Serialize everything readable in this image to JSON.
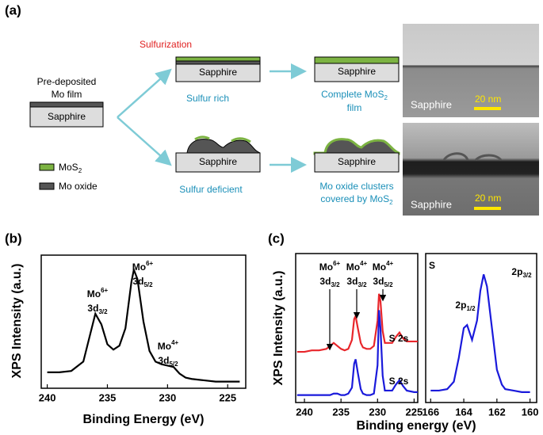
{
  "panel_labels": [
    "(a)",
    "(b)",
    "(c)"
  ],
  "diagram": {
    "process": "Sulfurization",
    "start_label": [
      "Pre-deposited",
      "Mo film"
    ],
    "substrates": [
      "Sapphire",
      "Sapphire",
      "Sapphire",
      "Sapphire",
      "Sapphire"
    ],
    "conditions": [
      "Sulfur rich",
      "Sulfur deficient"
    ],
    "results": [
      {
        "main": "Complete MoS",
        "sub": "2",
        "line2": "film"
      },
      {
        "line1": "Mo oxide clusters",
        "main": "covered by MoS",
        "sub": "2"
      }
    ],
    "legend": [
      {
        "main": "MoS",
        "sub": "2"
      },
      {
        "main": "Mo oxide"
      }
    ],
    "tem": [
      {
        "label": "Sapphire",
        "scale": "20 nm"
      },
      {
        "label": "Sapphire",
        "scale": "20 nm"
      }
    ]
  },
  "chart_data": [
    {
      "type": "line",
      "x_label": "Binding Energy (eV)",
      "y_label": "XPS Intensity (a.u.)",
      "x": [
        240,
        239,
        238,
        237,
        236.5,
        236,
        235.5,
        235,
        234.5,
        234,
        233.5,
        233,
        232.8,
        232.5,
        232,
        231.5,
        231,
        230.5,
        230,
        229.5,
        229,
        228.5,
        228,
        227,
        226,
        225,
        224
      ],
      "series": [
        {
          "color": "#000000",
          "values": [
            12,
            12,
            13,
            20,
            38,
            56,
            48,
            33,
            29,
            32,
            45,
            80,
            89,
            82,
            50,
            28,
            20,
            18,
            17,
            16,
            11,
            8,
            7,
            6,
            5,
            5,
            5
          ]
        }
      ],
      "xlim": [
        240.5,
        223.5
      ],
      "ylim": [
        0,
        100
      ],
      "xticks": [
        240,
        235,
        230,
        225
      ],
      "annotations": [
        {
          "ion": "Mo",
          "charge": "6+",
          "orbital": "3d",
          "level": "3/2"
        },
        {
          "ion": "Mo",
          "charge": "6+",
          "orbital": "3d",
          "level": "5/2"
        },
        {
          "ion": "Mo",
          "charge": "4+",
          "orbital": "3d",
          "level": "5/2"
        }
      ]
    },
    {
      "type": "line",
      "x_label": "Binding energy (eV)",
      "y_label": "XPS Intensity (a.u.)",
      "x": [
        241,
        240,
        239,
        238,
        237,
        236.5,
        236,
        235.5,
        235,
        234.5,
        234,
        233.5,
        233.2,
        233,
        232.7,
        232.3,
        232,
        231.5,
        231,
        230.5,
        230,
        229.8,
        229.6,
        229.3,
        229,
        228.5,
        228,
        227.5,
        227,
        226.5,
        226,
        225,
        224.5
      ],
      "series": [
        {
          "color": "#e8262b",
          "values": [
            34,
            34,
            35,
            35,
            36,
            38,
            40,
            38,
            36,
            35,
            36,
            42,
            56,
            58,
            50,
            40,
            37,
            36,
            36,
            38,
            55,
            73,
            68,
            48,
            40,
            40,
            40,
            44,
            47,
            43,
            41,
            41,
            41
          ]
        },
        {
          "color": "#1a1adb",
          "values": [
            5,
            5,
            5,
            5,
            5,
            5,
            6,
            6,
            5,
            5,
            6,
            10,
            26,
            29,
            20,
            9,
            6,
            5,
            5,
            6,
            25,
            62,
            50,
            18,
            8,
            8,
            8,
            12,
            15,
            11,
            8,
            7,
            7
          ]
        }
      ],
      "xlim": [
        241.2,
        224.5
      ],
      "ylim": [
        0,
        100
      ],
      "xticks": [
        240,
        235,
        230,
        225
      ],
      "annotations": [
        {
          "ion": "Mo",
          "charge": "6+",
          "orbital": "3d",
          "level": "3/2"
        },
        {
          "ion": "Mo",
          "charge": "4+",
          "orbital": "3d",
          "level": "3/2"
        },
        {
          "ion": "Mo",
          "charge": "4+",
          "orbital": "3d",
          "level": "5/2"
        },
        {
          "text": "S 2s"
        },
        {
          "text": "S 2s"
        }
      ]
    },
    {
      "type": "line",
      "x": [
        166,
        165.5,
        165,
        164.6,
        164.3,
        164,
        163.8,
        163.5,
        163.2,
        163,
        162.8,
        162.6,
        162.3,
        162,
        161.7,
        161.5,
        161,
        160.5,
        160
      ],
      "series": [
        {
          "color": "#1a1adb",
          "values": [
            8,
            8,
            9,
            14,
            30,
            50,
            52,
            42,
            55,
            75,
            86,
            78,
            50,
            22,
            12,
            9,
            8,
            7,
            7
          ]
        }
      ],
      "xlim": [
        166.3,
        159.6
      ],
      "ylim": [
        0,
        100
      ],
      "xticks": [
        166,
        164,
        162,
        160
      ],
      "annotations": [
        {
          "text": "S"
        },
        {
          "orbital": "2p",
          "level": "3/2"
        },
        {
          "orbital": "2p",
          "level": "1/2"
        }
      ]
    }
  ]
}
